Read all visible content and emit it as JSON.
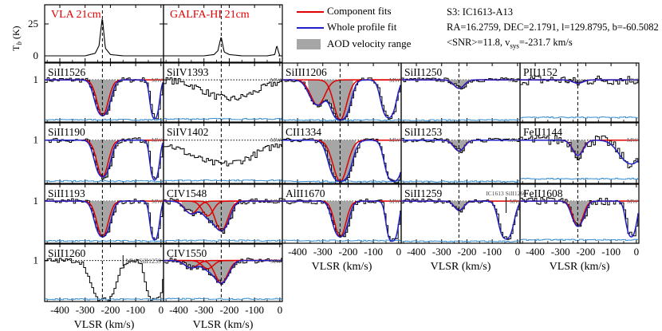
{
  "figure": {
    "info_lines": [
      "S3: IC1613-A13",
      "RA=16.2759, DEC=2.1791, l=129.8795, b=-60.5082",
      "<SNR>=11.8, v",
      "sys",
      "=-231.7 km/s"
    ],
    "legend": [
      {
        "label": "Component fits",
        "color": "#e00000",
        "kind": "line"
      },
      {
        "label": "Whole profile fit",
        "color": "#2020c8",
        "kind": "line"
      },
      {
        "label": "AOD velocity range",
        "color": "#a6a6a6",
        "kind": "box"
      }
    ],
    "xlabel": "VLSR (km/s)",
    "colors": {
      "data": "#000000",
      "component": "#e00000",
      "whole": "#2020c8",
      "error": "#3a8fd0",
      "shade": "#a6a6a6"
    }
  },
  "chart_data": [
    {
      "type": "line",
      "title": "VLA 21cm",
      "panel": "hi-vla",
      "ylabel": "T_b (K)",
      "yticks": [
        0,
        25
      ],
      "ylim": [
        -5,
        40
      ],
      "xlim": [
        -460,
        10
      ],
      "vsys": -231.7,
      "x": [
        -450,
        -400,
        -350,
        -300,
        -260,
        -245,
        -238,
        -232,
        -226,
        -220,
        -200,
        -150,
        -100,
        -50,
        0
      ],
      "y": [
        0,
        0,
        0,
        0,
        2,
        8,
        20,
        30,
        18,
        6,
        1,
        0,
        0,
        0,
        0
      ]
    },
    {
      "type": "line",
      "title": "GALFA-HI 21cm",
      "panel": "hi-galfa",
      "ylabel": "",
      "yticks": [
        0,
        25
      ],
      "ylim": [
        -5,
        40
      ],
      "xlim": [
        -460,
        10
      ],
      "vsys": -231.7,
      "x": [
        -450,
        -400,
        -350,
        -300,
        -260,
        -245,
        -238,
        -232,
        -226,
        -220,
        -200,
        -150,
        -100,
        -50,
        -20,
        -12,
        -5,
        0
      ],
      "y": [
        0,
        0,
        0,
        0,
        1,
        4,
        10,
        15,
        9,
        3,
        1,
        0,
        0,
        0,
        1,
        8,
        3,
        0
      ]
    },
    {
      "type": "line",
      "title": "SiII1526",
      "mw_label": "MW",
      "ylim": [
        0,
        1.4
      ],
      "yticks": [
        1
      ],
      "continuum": true,
      "profile": {
        "lines": [
          {
            "v": -231,
            "depth": 0.85,
            "sigma": 22
          },
          {
            "v": -25,
            "depth": 0.92,
            "sigma": 12
          }
        ],
        "noise": 0.06
      },
      "components": [
        {
          "v": -231,
          "depth": 0.85,
          "sigma": 22
        }
      ],
      "aod": [
        -290,
        -180
      ]
    },
    {
      "type": "line",
      "title": "SiIV1393",
      "mw_label": "MW",
      "ylim": [
        0,
        1.4
      ],
      "yticks": [
        1
      ],
      "continuum": false,
      "profile": {
        "lines": [
          {
            "v": -200,
            "depth": 0.45,
            "sigma": 90
          }
        ],
        "noise": 0.08
      },
      "components": [],
      "aod": null
    },
    {
      "type": "line",
      "title": "SiIII1206",
      "mw_label": "MW",
      "ylim": [
        0,
        1.4
      ],
      "yticks": [
        1
      ],
      "continuum": true,
      "profile": {
        "lines": [
          {
            "v": -320,
            "depth": 0.6,
            "sigma": 28
          },
          {
            "v": -231,
            "depth": 0.95,
            "sigma": 25
          },
          {
            "v": -40,
            "depth": 0.9,
            "sigma": 20
          }
        ],
        "noise": 0.05
      },
      "components": [
        {
          "v": -320,
          "depth": 0.6,
          "sigma": 28
        },
        {
          "v": -231,
          "depth": 0.95,
          "sigma": 25
        }
      ],
      "aod": [
        -360,
        -180
      ]
    },
    {
      "type": "line",
      "title": "SiII1250",
      "mw_label": "MW",
      "ylim": [
        0,
        1.4
      ],
      "yticks": [
        1
      ],
      "continuum": true,
      "profile": {
        "lines": [
          {
            "v": -231,
            "depth": 0.2,
            "sigma": 20
          }
        ],
        "noise": 0.05
      },
      "components": [
        {
          "v": -231,
          "depth": 0.2,
          "sigma": 20
        }
      ],
      "aod": [
        -280,
        -190
      ]
    },
    {
      "type": "line",
      "title": "PII1152",
      "mw_label": "MW",
      "ylim": [
        0,
        1.4
      ],
      "yticks": [
        1
      ],
      "continuum": true,
      "profile": {
        "lines": [
          {
            "v": -231,
            "depth": 0.08,
            "sigma": 20
          }
        ],
        "noise": 0.12
      },
      "components": [
        {
          "v": -231,
          "depth": 0.08,
          "sigma": 20
        }
      ],
      "aod": [
        -300,
        -190
      ]
    },
    {
      "type": "line",
      "title": "SiII1190",
      "mw_label": "MW",
      "ylim": [
        0,
        1.4
      ],
      "yticks": [
        1
      ],
      "continuum": true,
      "profile": {
        "lines": [
          {
            "v": -231,
            "depth": 0.85,
            "sigma": 22
          },
          {
            "v": -25,
            "depth": 0.92,
            "sigma": 12
          }
        ],
        "noise": 0.06
      },
      "components": [
        {
          "v": -231,
          "depth": 0.85,
          "sigma": 22
        }
      ],
      "aod": [
        -290,
        -180
      ]
    },
    {
      "type": "line",
      "title": "SiIV1402",
      "mw_label": "MW",
      "ylim": [
        0,
        1.4
      ],
      "yticks": [
        1
      ],
      "continuum": false,
      "profile": {
        "lines": [
          {
            "v": -230,
            "depth": 0.55,
            "sigma": 110
          }
        ],
        "noise": 0.08
      },
      "components": [],
      "aod": null
    },
    {
      "type": "line",
      "title": "CII1334",
      "mw_label": "MW",
      "ylim": [
        0,
        1.4
      ],
      "yticks": [
        1
      ],
      "continuum": true,
      "profile": {
        "lines": [
          {
            "v": -231,
            "depth": 0.95,
            "sigma": 28
          },
          {
            "v": -20,
            "depth": 0.95,
            "sigma": 22
          }
        ],
        "noise": 0.05
      },
      "components": [
        {
          "v": -231,
          "depth": 0.95,
          "sigma": 28
        }
      ],
      "aod": [
        -300,
        -170
      ]
    },
    {
      "type": "line",
      "title": "SiII1253",
      "mw_label": "MW",
      "ylim": [
        0,
        1.4
      ],
      "yticks": [
        1
      ],
      "continuum": true,
      "profile": {
        "lines": [
          {
            "v": -231,
            "depth": 0.25,
            "sigma": 20
          }
        ],
        "noise": 0.05
      },
      "components": [
        {
          "v": -231,
          "depth": 0.25,
          "sigma": 20
        }
      ],
      "aod": [
        -270,
        -190
      ]
    },
    {
      "type": "line",
      "title": "FeII1144",
      "mw_label": "MW",
      "ylim": [
        0,
        1.4
      ],
      "yticks": [
        1
      ],
      "continuum": true,
      "profile": {
        "lines": [
          {
            "v": -231,
            "depth": 0.35,
            "sigma": 20
          },
          {
            "v": -20,
            "depth": 0.55,
            "sigma": 40
          }
        ],
        "noise": 0.12
      },
      "components": [
        {
          "v": -231,
          "depth": 0.35,
          "sigma": 20
        }
      ],
      "aod": [
        -260,
        -200
      ]
    },
    {
      "type": "line",
      "title": "SiII1193",
      "mw_label": "MW",
      "ylim": [
        0,
        1.4
      ],
      "yticks": [
        1
      ],
      "continuum": true,
      "profile": {
        "lines": [
          {
            "v": -231,
            "depth": 0.85,
            "sigma": 22
          },
          {
            "v": -25,
            "depth": 0.92,
            "sigma": 12
          }
        ],
        "noise": 0.06
      },
      "components": [
        {
          "v": -231,
          "depth": 0.85,
          "sigma": 22
        }
      ],
      "aod": [
        -290,
        -180
      ]
    },
    {
      "type": "line",
      "title": "CIV1548",
      "mw_label": "MW",
      "ylim": [
        0,
        1.4
      ],
      "yticks": [
        1
      ],
      "continuum": true,
      "profile": {
        "lines": [
          {
            "v": -350,
            "depth": 0.3,
            "sigma": 25
          },
          {
            "v": -285,
            "depth": 0.35,
            "sigma": 22
          },
          {
            "v": -231,
            "depth": 0.7,
            "sigma": 25
          }
        ],
        "noise": 0.07
      },
      "components": [
        {
          "v": -350,
          "depth": 0.3,
          "sigma": 25
        },
        {
          "v": -285,
          "depth": 0.35,
          "sigma": 22
        },
        {
          "v": -231,
          "depth": 0.7,
          "sigma": 25
        }
      ],
      "aod": [
        -390,
        -180
      ]
    },
    {
      "type": "line",
      "title": "AlII1670",
      "mw_label": "MW",
      "ylim": [
        0,
        1.4
      ],
      "yticks": [
        1
      ],
      "continuum": true,
      "profile": {
        "lines": [
          {
            "v": -231,
            "depth": 0.85,
            "sigma": 22
          },
          {
            "v": -25,
            "depth": 0.95,
            "sigma": 15
          }
        ],
        "noise": 0.07
      },
      "components": [
        {
          "v": -231,
          "depth": 0.85,
          "sigma": 22
        }
      ],
      "aod": [
        -290,
        -180
      ]
    },
    {
      "type": "line",
      "title": "SiII1259",
      "mw_label": "IC1613 SiII1260",
      "mw_label2": "MW",
      "ylim": [
        0,
        1.4
      ],
      "yticks": [
        1
      ],
      "continuum": true,
      "profile": {
        "lines": [
          {
            "v": -231,
            "depth": 0.22,
            "sigma": 18
          },
          {
            "v": -45,
            "depth": 0.9,
            "sigma": 20
          }
        ],
        "noise": 0.05
      },
      "components": [
        {
          "v": -231,
          "depth": 0.22,
          "sigma": 18
        }
      ],
      "aod": [
        -280,
        -190
      ]
    },
    {
      "type": "line",
      "title": "FeII1608",
      "mw_label": "MW",
      "ylim": [
        0,
        1.4
      ],
      "yticks": [
        1
      ],
      "continuum": true,
      "profile": {
        "lines": [
          {
            "v": -231,
            "depth": 0.6,
            "sigma": 20
          },
          {
            "v": -20,
            "depth": 0.85,
            "sigma": 15
          }
        ],
        "noise": 0.09
      },
      "components": [
        {
          "v": -231,
          "depth": 0.6,
          "sigma": 20
        }
      ],
      "aod": [
        -270,
        -190
      ]
    },
    {
      "type": "line",
      "title": "SiII1260",
      "mw_label": "MW SiII1259",
      "ylim": [
        0,
        1.4
      ],
      "yticks": [
        1
      ],
      "continuum": false,
      "profile": {
        "lines": [
          {
            "v": -231,
            "depth": 0.97,
            "sigma": 30
          },
          {
            "v": -30,
            "depth": 0.97,
            "sigma": 20
          }
        ],
        "noise": 0.06
      },
      "components": [],
      "aod": null
    },
    {
      "type": "line",
      "title": "CIV1550",
      "mw_label": "MW",
      "ylim": [
        0,
        1.4
      ],
      "yticks": [
        1
      ],
      "continuum": true,
      "profile": {
        "lines": [
          {
            "v": -350,
            "depth": 0.18,
            "sigma": 25
          },
          {
            "v": -285,
            "depth": 0.2,
            "sigma": 22
          },
          {
            "v": -231,
            "depth": 0.55,
            "sigma": 25
          }
        ],
        "noise": 0.07
      },
      "components": [
        {
          "v": -350,
          "depth": 0.18,
          "sigma": 25
        },
        {
          "v": -285,
          "depth": 0.2,
          "sigma": 22
        },
        {
          "v": -231,
          "depth": 0.55,
          "sigma": 25
        }
      ],
      "aod": [
        -390,
        -180
      ]
    }
  ],
  "axes": {
    "xticks": [
      -400,
      -300,
      -200,
      -100,
      0
    ],
    "xtick_labels": [
      "-400",
      "-300",
      "-200",
      "-100",
      "0"
    ],
    "xlim": [
      -460,
      10
    ],
    "vsys": -231.7
  }
}
